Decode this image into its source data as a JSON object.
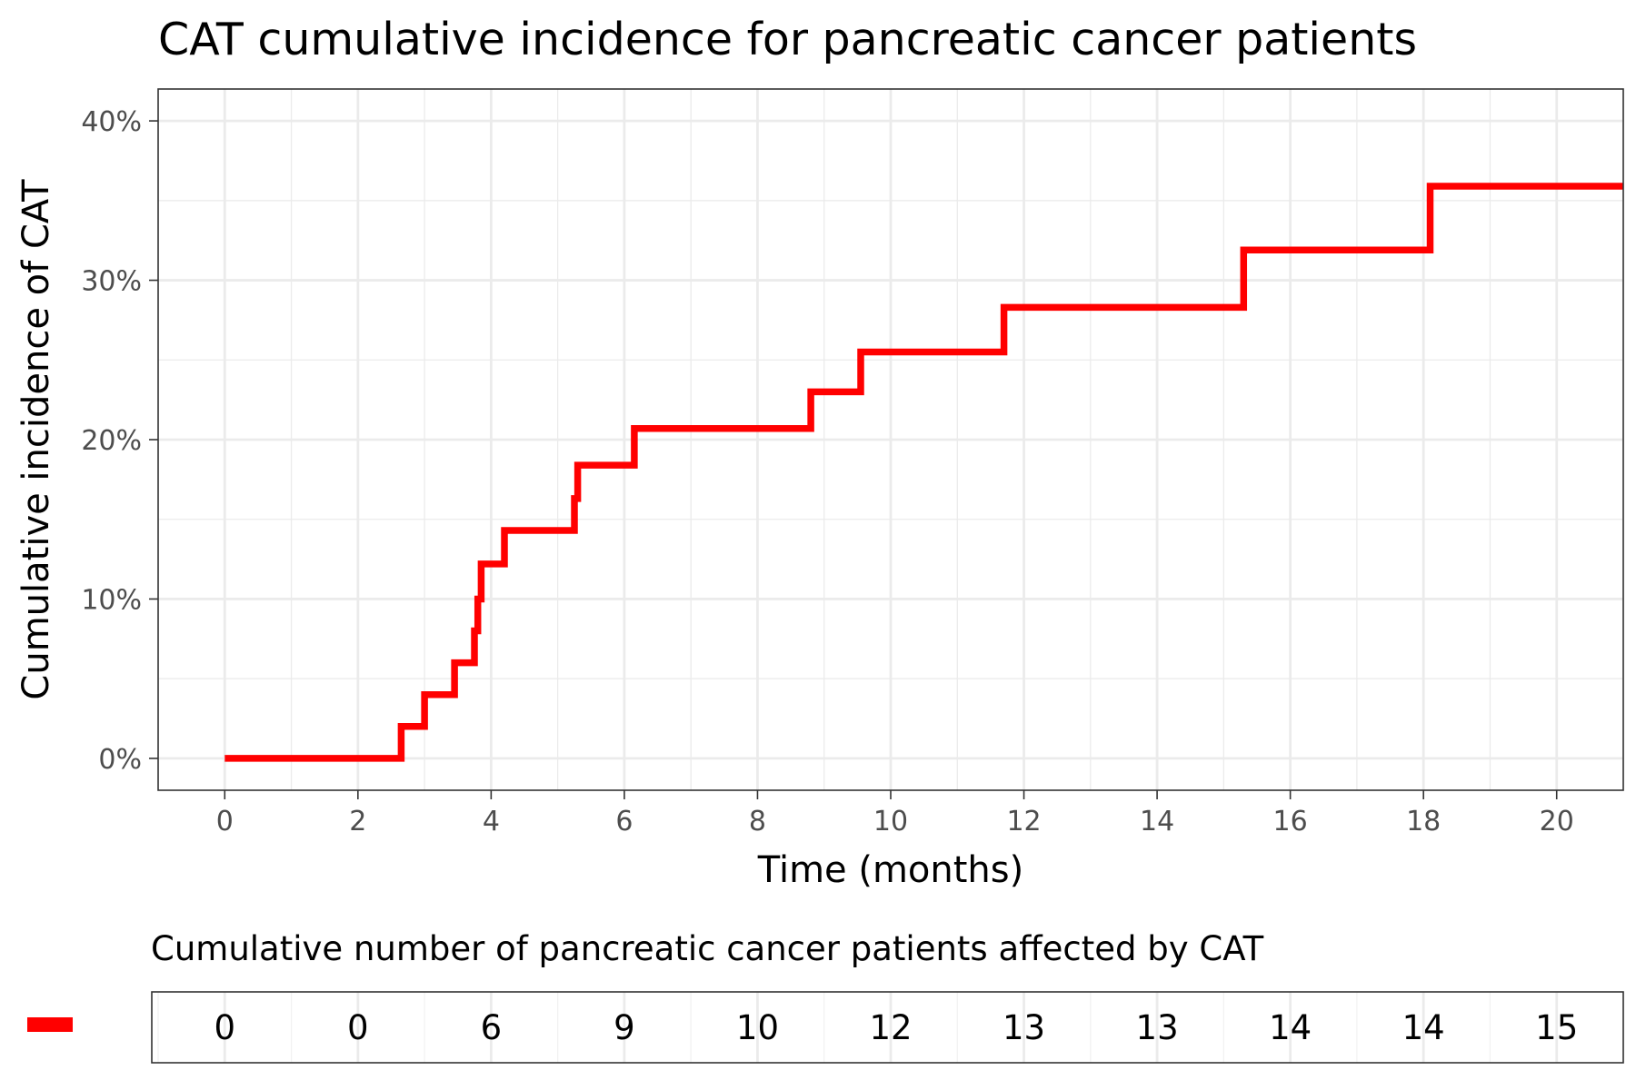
{
  "chart_data": {
    "type": "line",
    "title": "CAT cumulative incidence for pancreatic cancer patients",
    "xlabel": "Time (months)",
    "ylabel": "Cumulative incidence of CAT",
    "xlim": [
      -1,
      21
    ],
    "ylim": [
      -0.02,
      0.42
    ],
    "x_ticks": [
      0,
      2,
      4,
      6,
      8,
      10,
      12,
      14,
      16,
      18,
      20
    ],
    "x_tick_labels": [
      "0",
      "2",
      "4",
      "6",
      "8",
      "10",
      "12",
      "14",
      "16",
      "18",
      "20"
    ],
    "y_ticks": [
      0,
      0.1,
      0.2,
      0.3,
      0.4
    ],
    "y_tick_labels": [
      "0%",
      "10%",
      "20%",
      "30%",
      "40%"
    ],
    "grid": true,
    "step": true,
    "series": [
      {
        "color": "#ff0000",
        "x": [
          0,
          2.65,
          3.0,
          3.45,
          3.75,
          3.8,
          3.85,
          4.2,
          5.25,
          5.3,
          6.15,
          8.8,
          9.55,
          11.7,
          15.3,
          18.1,
          21
        ],
        "y": [
          0,
          0.02,
          0.04,
          0.06,
          0.08,
          0.1,
          0.122,
          0.143,
          0.163,
          0.184,
          0.207,
          0.23,
          0.255,
          0.283,
          0.319,
          0.359,
          0.359
        ]
      }
    ],
    "risk_table": {
      "title": "Cumulative number of pancreatic cancer patients affected by CAT",
      "times": [
        0,
        2,
        4,
        6,
        8,
        10,
        12,
        14,
        16,
        18,
        20
      ],
      "values": [
        "0",
        "0",
        "6",
        "9",
        "10",
        "12",
        "13",
        "13",
        "14",
        "14",
        "15"
      ]
    }
  }
}
